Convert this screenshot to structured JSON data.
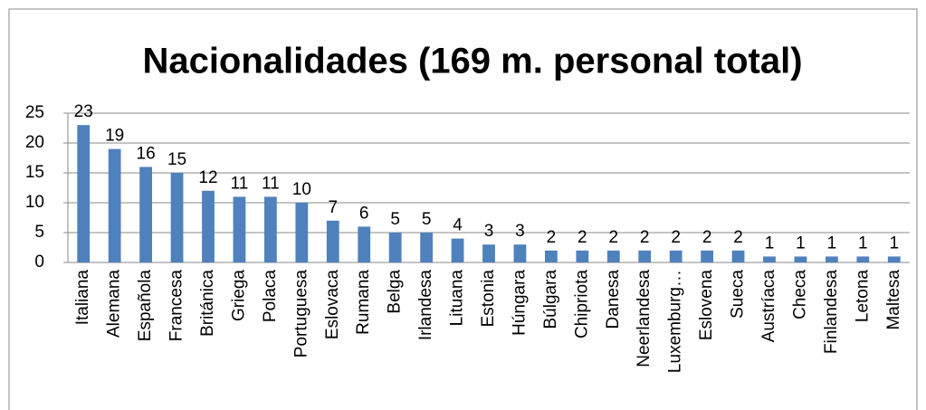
{
  "chart_data": {
    "type": "bar",
    "title": "Nacionalidades (169 m. personal total)",
    "categories": [
      "Italiana",
      "Alemana",
      "Española",
      "Francesa",
      "Británica",
      "Griega",
      "Polaca",
      "Portuguesa",
      "Eslovaca",
      "Rumana",
      "Belga",
      "Irlandesa",
      "Lituana",
      "Estonia",
      "Húngara",
      "Búlgara",
      "Chipriota",
      "Danesa",
      "Neerlandesa",
      "Luxemburg…",
      "Eslovena",
      "Sueca",
      "Austríaca",
      "Checa",
      "Finlandesa",
      "Letona",
      "Maltesa"
    ],
    "values": [
      23,
      19,
      16,
      15,
      12,
      11,
      11,
      10,
      7,
      6,
      5,
      5,
      4,
      3,
      3,
      2,
      2,
      2,
      2,
      2,
      2,
      2,
      1,
      1,
      1,
      1,
      1
    ],
    "color": "#4f81bd",
    "ylim": [
      0,
      25
    ],
    "yticks": [
      0,
      5,
      10,
      15,
      20,
      25
    ],
    "grid": true
  }
}
